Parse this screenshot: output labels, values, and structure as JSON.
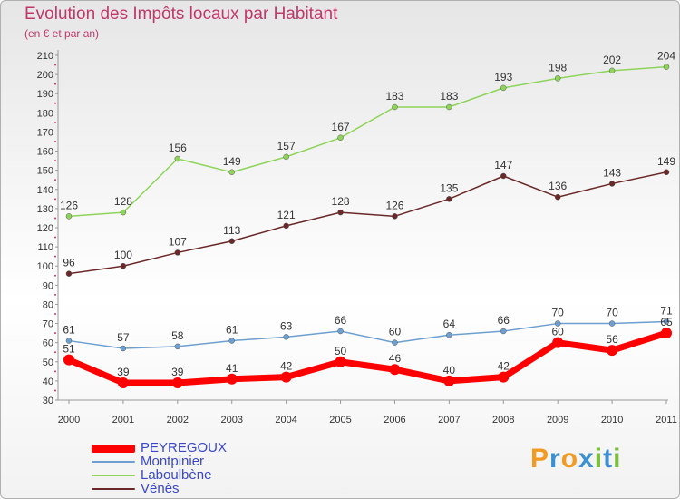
{
  "chart_data": {
    "type": "line",
    "title": "Evolution des Impôts locaux par Habitant",
    "subtitle": "(en € et par an)",
    "x": [
      "2000",
      "2001",
      "2002",
      "2003",
      "2004",
      "2005",
      "2006",
      "2007",
      "2008",
      "2009",
      "2010",
      "2011"
    ],
    "ylim": [
      30,
      210
    ],
    "yticks": [
      30,
      40,
      50,
      60,
      70,
      80,
      90,
      100,
      110,
      120,
      130,
      140,
      150,
      160,
      170,
      180,
      190,
      200,
      210
    ],
    "grid": false,
    "legend_position": "bottom-left",
    "series": [
      {
        "name": "PEYREGOUX",
        "color": "#ff0000",
        "values": [
          51,
          39,
          39,
          41,
          42,
          50,
          46,
          40,
          42,
          60,
          56,
          65
        ]
      },
      {
        "name": "Montpinier",
        "color": "#6d9fd0",
        "values": [
          61,
          57,
          58,
          61,
          63,
          66,
          60,
          64,
          66,
          70,
          70,
          71
        ]
      },
      {
        "name": "Laboulbène",
        "color": "#8ed45a",
        "values": [
          126,
          128,
          156,
          149,
          157,
          167,
          183,
          183,
          193,
          198,
          202,
          204
        ]
      },
      {
        "name": "Vénès",
        "color": "#6b2828",
        "values": [
          96,
          100,
          107,
          113,
          121,
          128,
          126,
          135,
          147,
          136,
          143,
          149
        ]
      }
    ]
  },
  "logo": {
    "letters": [
      "P",
      "r",
      "o",
      "x",
      "i",
      "t",
      "i"
    ],
    "colors": [
      "#f29a21",
      "#3c8fd1",
      "#f29a21",
      "#3c8fd1",
      "#7bbf3a",
      "#3c8fd1",
      "#7bbf3a"
    ]
  }
}
